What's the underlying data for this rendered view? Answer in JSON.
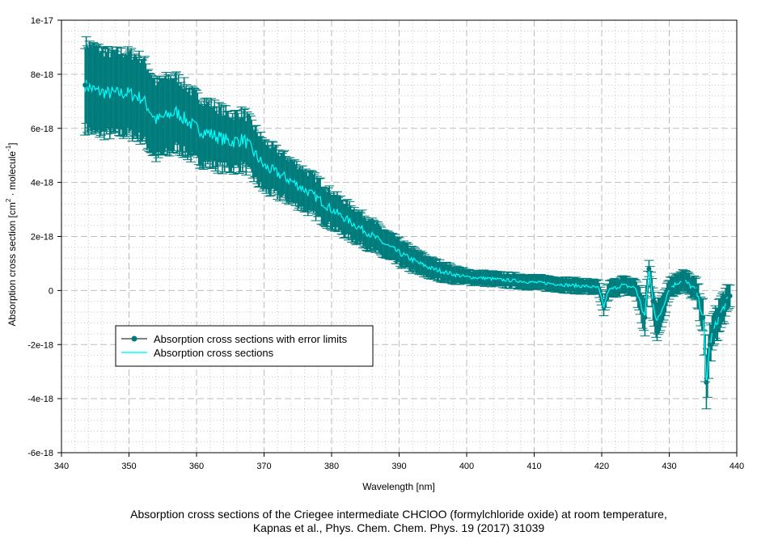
{
  "chart_data": {
    "type": "line",
    "title": "",
    "caption_lines": [
      "Absorption cross sections of the Criegee intermediate CHClOO (formylchloride oxide) at room temperature,",
      "Kapnas et al., Phys. Chem. Chem. Phys. 19 (2017) 31039"
    ],
    "xlabel": "Wavelength [nm]",
    "ylabel_parts": [
      "Absorption cross section [cm",
      "2",
      " · molecule",
      "-1",
      "]"
    ],
    "xlim": [
      340,
      440
    ],
    "ylim": [
      -6e-18,
      1e-17
    ],
    "x_ticks": [
      340,
      350,
      360,
      370,
      380,
      390,
      400,
      410,
      420,
      430,
      440
    ],
    "x_tick_labels": [
      "340",
      "350",
      "360",
      "370",
      "380",
      "390",
      "400",
      "410",
      "420",
      "430",
      "440"
    ],
    "y_ticks": [
      1e-17,
      8e-18,
      6e-18,
      4e-18,
      2e-18,
      0,
      -2e-18,
      -4e-18,
      -6e-18
    ],
    "y_tick_labels": [
      "1e-17",
      "8e-18",
      "6e-18",
      "4e-18",
      "2e-18",
      "0",
      "-2e-18",
      "-4e-18",
      "-6e-18"
    ],
    "grid": true,
    "legend_position": "lower-left",
    "series": [
      {
        "name": "Absorption cross sections with error limits",
        "color": "#007B7B",
        "style": "line-with-markers-and-errorbars",
        "x": [
          343.5,
          345,
          347,
          350,
          352,
          354,
          356,
          357,
          360,
          363,
          365,
          367,
          370,
          373,
          375,
          378,
          380,
          383,
          385,
          388,
          390,
          393,
          395,
          398,
          400,
          403,
          405,
          408,
          410,
          413,
          415,
          418,
          419.5,
          420.3,
          421,
          423,
          425,
          426.4,
          427,
          427.6,
          428.2,
          430,
          432,
          434,
          435,
          435.5,
          436,
          436.5,
          437.5,
          438.5,
          439
        ],
        "y": [
          7.6e-18,
          7.4e-18,
          7.3e-18,
          7.3e-18,
          7.1e-18,
          6.3e-18,
          6.5e-18,
          6.6e-18,
          6e-18,
          5.7e-18,
          5.5e-18,
          5.6e-18,
          4.6e-18,
          4.2e-18,
          3.9e-18,
          3.4e-18,
          3e-18,
          2.5e-18,
          2.2e-18,
          1.7e-18,
          1.4e-18,
          1e-18,
          8e-19,
          6e-19,
          5e-19,
          4.5e-19,
          4e-19,
          3.5e-19,
          3e-19,
          2.5e-19,
          2e-19,
          1.5e-19,
          1e-19,
          -6e-19,
          0.0,
          2e-19,
          1e-19,
          -1e-18,
          8e-19,
          -4e-19,
          -1.2e-18,
          1e-19,
          4e-19,
          0.0,
          -1e-18,
          -3.4e-18,
          -2e-18,
          -1.5e-18,
          -9e-19,
          -4e-19,
          -2e-19
        ],
        "error": [
          1.6e-18,
          1.6e-18,
          1.5e-18,
          1.5e-18,
          1.5e-18,
          1.4e-18,
          1.4e-18,
          1.3e-18,
          1.2e-18,
          1.1e-18,
          1e-18,
          1e-18,
          9e-19,
          8e-19,
          7.5e-19,
          7e-19,
          6.5e-19,
          6e-19,
          5.5e-19,
          5e-19,
          4.5e-19,
          4e-19,
          3.5e-19,
          3e-19,
          2.5e-19,
          2.5e-19,
          2.5e-19,
          2.5e-19,
          2.5e-19,
          2.5e-19,
          2.5e-19,
          2.5e-19,
          2.5e-19,
          3e-19,
          3e-19,
          3e-19,
          3e-19,
          7e-19,
          3e-19,
          6e-19,
          7e-19,
          3.5e-19,
          3.5e-19,
          4e-19,
          6e-19,
          1e-18,
          7e-19,
          6e-19,
          6e-19,
          5e-19,
          4e-19
        ]
      },
      {
        "name": "Absorption cross sections",
        "color": "#00FFFF",
        "style": "line"
      }
    ]
  }
}
